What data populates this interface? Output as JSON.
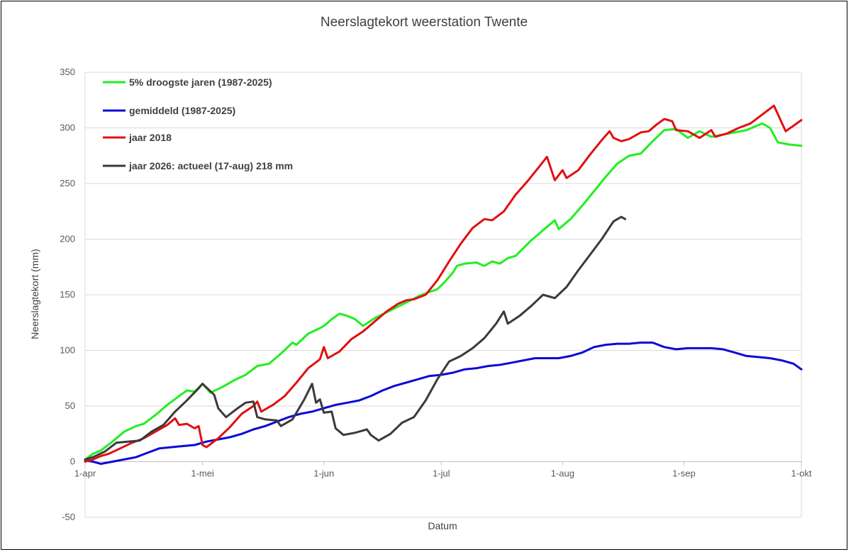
{
  "chart_data": {
    "type": "line",
    "title": "Neerslagtekort weerstation Twente",
    "xlabel": "Datum",
    "ylabel": "Neerslagtekort (mm)",
    "x_domain": [
      "2026-04-01",
      "2026-10-01"
    ],
    "x_ticks": [
      {
        "date": "2026-04-01",
        "label": "1-apr"
      },
      {
        "date": "2026-05-01",
        "label": "1-mei"
      },
      {
        "date": "2026-06-01",
        "label": "1-jun"
      },
      {
        "date": "2026-07-01",
        "label": "1-jul"
      },
      {
        "date": "2026-08-01",
        "label": "1-aug"
      },
      {
        "date": "2026-09-01",
        "label": "1-sep"
      },
      {
        "date": "2026-10-01",
        "label": "1-okt"
      }
    ],
    "ylim": [
      -50,
      350
    ],
    "yticks": [
      -50,
      0,
      50,
      100,
      150,
      200,
      250,
      300,
      350
    ],
    "grid": true,
    "legend_position": "top-left",
    "series": [
      {
        "name": "5% droogste jaren (1987-2025)",
        "color": "#22ee22",
        "points": [
          [
            "2026-04-01",
            2
          ],
          [
            "2026-04-03",
            7
          ],
          [
            "2026-04-05",
            10
          ],
          [
            "2026-04-08",
            18
          ],
          [
            "2026-04-11",
            27
          ],
          [
            "2026-04-14",
            32
          ],
          [
            "2026-04-16",
            34
          ],
          [
            "2026-04-19",
            42
          ],
          [
            "2026-04-22",
            51
          ],
          [
            "2026-04-25",
            59
          ],
          [
            "2026-04-27",
            64
          ],
          [
            "2026-04-29",
            63
          ],
          [
            "2026-05-01",
            70
          ],
          [
            "2026-05-03",
            62
          ],
          [
            "2026-05-06",
            67
          ],
          [
            "2026-05-09",
            73
          ],
          [
            "2026-05-12",
            78
          ],
          [
            "2026-05-15",
            86
          ],
          [
            "2026-05-18",
            88
          ],
          [
            "2026-05-21",
            97
          ],
          [
            "2026-05-24",
            107
          ],
          [
            "2026-05-25",
            105
          ],
          [
            "2026-05-28",
            115
          ],
          [
            "2026-05-31",
            120
          ],
          [
            "2026-06-01",
            122
          ],
          [
            "2026-06-03",
            128
          ],
          [
            "2026-06-05",
            133
          ],
          [
            "2026-06-07",
            131
          ],
          [
            "2026-06-09",
            128
          ],
          [
            "2026-06-11",
            122
          ],
          [
            "2026-06-14",
            129
          ],
          [
            "2026-06-18",
            136
          ],
          [
            "2026-06-22",
            143
          ],
          [
            "2026-06-26",
            150
          ],
          [
            "2026-06-30",
            155
          ],
          [
            "2026-07-02",
            162
          ],
          [
            "2026-07-04",
            170
          ],
          [
            "2026-07-05",
            176
          ],
          [
            "2026-07-07",
            178
          ],
          [
            "2026-07-10",
            179
          ],
          [
            "2026-07-12",
            176
          ],
          [
            "2026-07-14",
            180
          ],
          [
            "2026-07-16",
            178
          ],
          [
            "2026-07-18",
            183
          ],
          [
            "2026-07-20",
            185
          ],
          [
            "2026-07-24",
            199
          ],
          [
            "2026-07-28",
            211
          ],
          [
            "2026-07-30",
            217
          ],
          [
            "2026-07-31",
            209
          ],
          [
            "2026-08-03",
            218
          ],
          [
            "2026-08-06",
            230
          ],
          [
            "2026-08-09",
            243
          ],
          [
            "2026-08-12",
            256
          ],
          [
            "2026-08-15",
            268
          ],
          [
            "2026-08-18",
            275
          ],
          [
            "2026-08-21",
            277
          ],
          [
            "2026-08-24",
            288
          ],
          [
            "2026-08-27",
            298
          ],
          [
            "2026-08-30",
            299
          ],
          [
            "2026-09-02",
            291
          ],
          [
            "2026-09-05",
            297
          ],
          [
            "2026-09-08",
            292
          ],
          [
            "2026-09-11",
            294
          ],
          [
            "2026-09-14",
            296
          ],
          [
            "2026-09-17",
            298
          ],
          [
            "2026-09-19",
            301
          ],
          [
            "2026-09-21",
            304
          ],
          [
            "2026-09-23",
            300
          ],
          [
            "2026-09-25",
            287
          ],
          [
            "2026-09-28",
            285
          ],
          [
            "2026-10-01",
            284
          ]
        ]
      },
      {
        "name": "gemiddeld (1987-2025)",
        "color": "#0a0ad6",
        "points": [
          [
            "2026-04-01",
            1
          ],
          [
            "2026-04-03",
            0
          ],
          [
            "2026-04-05",
            -2
          ],
          [
            "2026-04-08",
            0
          ],
          [
            "2026-04-11",
            2
          ],
          [
            "2026-04-14",
            4
          ],
          [
            "2026-04-17",
            8
          ],
          [
            "2026-04-20",
            12
          ],
          [
            "2026-04-23",
            13
          ],
          [
            "2026-04-26",
            14
          ],
          [
            "2026-04-29",
            15
          ],
          [
            "2026-05-02",
            18
          ],
          [
            "2026-05-05",
            20
          ],
          [
            "2026-05-08",
            22
          ],
          [
            "2026-05-11",
            25
          ],
          [
            "2026-05-14",
            29
          ],
          [
            "2026-05-17",
            32
          ],
          [
            "2026-05-20",
            36
          ],
          [
            "2026-05-23",
            40
          ],
          [
            "2026-05-26",
            43
          ],
          [
            "2026-05-29",
            45
          ],
          [
            "2026-06-01",
            48
          ],
          [
            "2026-06-04",
            51
          ],
          [
            "2026-06-07",
            53
          ],
          [
            "2026-06-10",
            55
          ],
          [
            "2026-06-13",
            59
          ],
          [
            "2026-06-16",
            64
          ],
          [
            "2026-06-19",
            68
          ],
          [
            "2026-06-22",
            71
          ],
          [
            "2026-06-25",
            74
          ],
          [
            "2026-06-28",
            77
          ],
          [
            "2026-07-01",
            78
          ],
          [
            "2026-07-04",
            80
          ],
          [
            "2026-07-07",
            83
          ],
          [
            "2026-07-10",
            84
          ],
          [
            "2026-07-13",
            86
          ],
          [
            "2026-07-16",
            87
          ],
          [
            "2026-07-19",
            89
          ],
          [
            "2026-07-22",
            91
          ],
          [
            "2026-07-25",
            93
          ],
          [
            "2026-07-28",
            93
          ],
          [
            "2026-07-31",
            93
          ],
          [
            "2026-08-03",
            95
          ],
          [
            "2026-08-06",
            98
          ],
          [
            "2026-08-09",
            103
          ],
          [
            "2026-08-12",
            105
          ],
          [
            "2026-08-15",
            106
          ],
          [
            "2026-08-18",
            106
          ],
          [
            "2026-08-21",
            107
          ],
          [
            "2026-08-24",
            107
          ],
          [
            "2026-08-27",
            103
          ],
          [
            "2026-08-30",
            101
          ],
          [
            "2026-09-02",
            102
          ],
          [
            "2026-09-05",
            102
          ],
          [
            "2026-09-08",
            102
          ],
          [
            "2026-09-11",
            101
          ],
          [
            "2026-09-14",
            98
          ],
          [
            "2026-09-17",
            95
          ],
          [
            "2026-09-20",
            94
          ],
          [
            "2026-09-23",
            93
          ],
          [
            "2026-09-26",
            91
          ],
          [
            "2026-09-29",
            88
          ],
          [
            "2026-10-01",
            83
          ]
        ]
      },
      {
        "name": "jaar 2018",
        "color": "#e01010",
        "points": [
          [
            "2026-04-01",
            0
          ],
          [
            "2026-04-03",
            2
          ],
          [
            "2026-04-05",
            5
          ],
          [
            "2026-04-07",
            7
          ],
          [
            "2026-04-10",
            12
          ],
          [
            "2026-04-13",
            17
          ],
          [
            "2026-04-16",
            21
          ],
          [
            "2026-04-19",
            27
          ],
          [
            "2026-04-22",
            33
          ],
          [
            "2026-04-24",
            39
          ],
          [
            "2026-04-25",
            33
          ],
          [
            "2026-04-27",
            34
          ],
          [
            "2026-04-29",
            30
          ],
          [
            "2026-04-30",
            32
          ],
          [
            "2026-05-01",
            15
          ],
          [
            "2026-05-02",
            13
          ],
          [
            "2026-05-05",
            21
          ],
          [
            "2026-05-08",
            31
          ],
          [
            "2026-05-11",
            43
          ],
          [
            "2026-05-14",
            50
          ],
          [
            "2026-05-15",
            54
          ],
          [
            "2026-05-16",
            45
          ],
          [
            "2026-05-19",
            51
          ],
          [
            "2026-05-22",
            59
          ],
          [
            "2026-05-25",
            71
          ],
          [
            "2026-05-28",
            84
          ],
          [
            "2026-05-31",
            92
          ],
          [
            "2026-06-01",
            103
          ],
          [
            "2026-06-02",
            93
          ],
          [
            "2026-06-05",
            99
          ],
          [
            "2026-06-08",
            110
          ],
          [
            "2026-06-11",
            117
          ],
          [
            "2026-06-14",
            126
          ],
          [
            "2026-06-17",
            135
          ],
          [
            "2026-06-20",
            142
          ],
          [
            "2026-06-22",
            145
          ],
          [
            "2026-06-24",
            146
          ],
          [
            "2026-06-27",
            150
          ],
          [
            "2026-06-30",
            163
          ],
          [
            "2026-07-03",
            180
          ],
          [
            "2026-07-06",
            196
          ],
          [
            "2026-07-09",
            210
          ],
          [
            "2026-07-12",
            218
          ],
          [
            "2026-07-14",
            217
          ],
          [
            "2026-07-17",
            225
          ],
          [
            "2026-07-20",
            240
          ],
          [
            "2026-07-23",
            252
          ],
          [
            "2026-07-26",
            265
          ],
          [
            "2026-07-28",
            274
          ],
          [
            "2026-07-30",
            253
          ],
          [
            "2026-08-01",
            262
          ],
          [
            "2026-08-02",
            255
          ],
          [
            "2026-08-05",
            262
          ],
          [
            "2026-08-08",
            276
          ],
          [
            "2026-08-11",
            289
          ],
          [
            "2026-08-13",
            297
          ],
          [
            "2026-08-14",
            291
          ],
          [
            "2026-08-16",
            288
          ],
          [
            "2026-08-18",
            290
          ],
          [
            "2026-08-21",
            296
          ],
          [
            "2026-08-23",
            297
          ],
          [
            "2026-08-25",
            303
          ],
          [
            "2026-08-27",
            308
          ],
          [
            "2026-08-29",
            306
          ],
          [
            "2026-08-30",
            298
          ],
          [
            "2026-09-02",
            297
          ],
          [
            "2026-09-05",
            291
          ],
          [
            "2026-09-08",
            298
          ],
          [
            "2026-09-09",
            292
          ],
          [
            "2026-09-12",
            295
          ],
          [
            "2026-09-15",
            300
          ],
          [
            "2026-09-18",
            304
          ],
          [
            "2026-09-21",
            312
          ],
          [
            "2026-09-24",
            320
          ],
          [
            "2026-09-27",
            297
          ],
          [
            "2026-09-29",
            302
          ],
          [
            "2026-10-01",
            307
          ]
        ]
      },
      {
        "name": "jaar 2026: actueel (17-aug) 218 mm",
        "color": "#3a3a3a",
        "points": [
          [
            "2026-04-01",
            2
          ],
          [
            "2026-04-03",
            4
          ],
          [
            "2026-04-06",
            9
          ],
          [
            "2026-04-09",
            17
          ],
          [
            "2026-04-12",
            18
          ],
          [
            "2026-04-15",
            19
          ],
          [
            "2026-04-18",
            27
          ],
          [
            "2026-04-21",
            33
          ],
          [
            "2026-04-24",
            45
          ],
          [
            "2026-04-27",
            55
          ],
          [
            "2026-04-30",
            66
          ],
          [
            "2026-05-01",
            70
          ],
          [
            "2026-05-04",
            60
          ],
          [
            "2026-05-05",
            48
          ],
          [
            "2026-05-07",
            40
          ],
          [
            "2026-05-10",
            48
          ],
          [
            "2026-05-12",
            53
          ],
          [
            "2026-05-14",
            54
          ],
          [
            "2026-05-15",
            40
          ],
          [
            "2026-05-17",
            38
          ],
          [
            "2026-05-20",
            37
          ],
          [
            "2026-05-21",
            32
          ],
          [
            "2026-05-24",
            38
          ],
          [
            "2026-05-27",
            56
          ],
          [
            "2026-05-29",
            70
          ],
          [
            "2026-05-30",
            53
          ],
          [
            "2026-05-31",
            56
          ],
          [
            "2026-06-01",
            44
          ],
          [
            "2026-06-03",
            45
          ],
          [
            "2026-06-04",
            30
          ],
          [
            "2026-06-06",
            24
          ],
          [
            "2026-06-09",
            26
          ],
          [
            "2026-06-12",
            29
          ],
          [
            "2026-06-13",
            24
          ],
          [
            "2026-06-15",
            19
          ],
          [
            "2026-06-18",
            25
          ],
          [
            "2026-06-21",
            35
          ],
          [
            "2026-06-24",
            40
          ],
          [
            "2026-06-27",
            55
          ],
          [
            "2026-06-30",
            74
          ],
          [
            "2026-07-03",
            90
          ],
          [
            "2026-07-06",
            95
          ],
          [
            "2026-07-09",
            102
          ],
          [
            "2026-07-12",
            111
          ],
          [
            "2026-07-15",
            124
          ],
          [
            "2026-07-17",
            135
          ],
          [
            "2026-07-18",
            124
          ],
          [
            "2026-07-21",
            131
          ],
          [
            "2026-07-24",
            140
          ],
          [
            "2026-07-27",
            150
          ],
          [
            "2026-07-30",
            147
          ],
          [
            "2026-08-02",
            157
          ],
          [
            "2026-08-05",
            172
          ],
          [
            "2026-08-08",
            186
          ],
          [
            "2026-08-11",
            200
          ],
          [
            "2026-08-14",
            216
          ],
          [
            "2026-08-16",
            220
          ],
          [
            "2026-08-17",
            218
          ]
        ]
      }
    ]
  }
}
